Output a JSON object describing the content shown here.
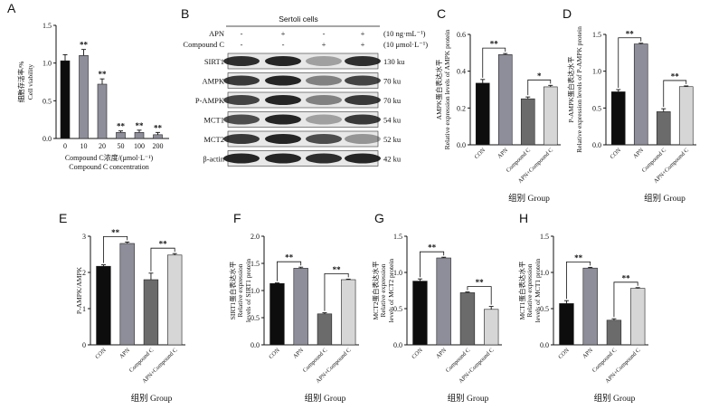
{
  "figure": {
    "western_blot": {
      "letter": "B",
      "title": "Sertoli cells",
      "row_labels": [
        "APN",
        "Compound C"
      ],
      "row_units": [
        "(10 ng·mL⁻¹)",
        "(10 μmol·L⁻¹)"
      ],
      "treatment_signs": [
        [
          "-",
          "+",
          "-",
          "+"
        ],
        [
          "-",
          "-",
          "+",
          "+"
        ]
      ],
      "bands": [
        {
          "protein": "SIRT1",
          "size": "130 ku"
        },
        {
          "protein": "AMPK",
          "size": "70 ku"
        },
        {
          "protein": "P-AMPK",
          "size": "70 ku"
        },
        {
          "protein": "MCT1",
          "size": "54 ku"
        },
        {
          "protein": "MCT2",
          "size": "52 ku"
        },
        {
          "protein": "β-actin",
          "size": "42 ku"
        }
      ]
    }
  },
  "chart_data": [
    {
      "letter": "A",
      "type": "bar",
      "categories": [
        "0",
        "10",
        "20",
        "50",
        "100",
        "200"
      ],
      "values": [
        1.03,
        1.1,
        0.72,
        0.08,
        0.08,
        0.05
      ],
      "errors": [
        0.08,
        0.08,
        0.07,
        0.02,
        0.03,
        0.03
      ],
      "significance": [
        "",
        "**",
        "**",
        "**",
        "**",
        "**"
      ],
      "ylabel_cn": "细胞存活率/%",
      "ylabel_en": "Cell viability",
      "xlabel_cn": "Compound C浓度/(μmol·L⁻¹)",
      "xlabel_en": "Compound C concentration",
      "ylim": [
        0,
        1.5
      ],
      "yticks": [
        "0.0",
        "0.5",
        "1.0",
        "1.5"
      ],
      "colors": [
        "#0d0d0d",
        "#8e8e9a",
        "#8e8e9a",
        "#8e8e9a",
        "#8e8e9a",
        "#8e8e9a"
      ]
    },
    {
      "letter": "C",
      "type": "bar",
      "categories": [
        "CON",
        "APN",
        "Compound C",
        "APN+Compound C"
      ],
      "values": [
        0.335,
        0.49,
        0.25,
        0.315
      ],
      "errors": [
        0.02,
        0.006,
        0.01,
        0.008
      ],
      "ylabel_cn": "AMPK蛋白表达水平",
      "ylabel_en1": "Relative expression levels of AMPK protein",
      "ylabel_en2": "",
      "group_label": "组别 Group",
      "ylim": [
        0,
        0.6
      ],
      "yticks": [
        "0.0",
        "0.2",
        "0.4",
        "0.6"
      ],
      "brackets": [
        {
          "from": 0,
          "to": 1,
          "label": "**"
        },
        {
          "from": 2,
          "to": 3,
          "label": "*"
        }
      ]
    },
    {
      "letter": "D",
      "type": "bar",
      "categories": [
        "CON",
        "APN",
        "Compound C",
        "APN+Compound C"
      ],
      "values": [
        0.72,
        1.37,
        0.45,
        0.79
      ],
      "errors": [
        0.03,
        0.01,
        0.04,
        0.01
      ],
      "ylabel_cn": "P-AMPK蛋白表达水平",
      "ylabel_en1": "Relative expression levels of P-AMPK protein",
      "ylabel_en2": "",
      "group_label": "组别 Group",
      "ylim": [
        0,
        1.5
      ],
      "yticks": [
        "0.0",
        "0.5",
        "1.0",
        "1.5"
      ],
      "brackets": [
        {
          "from": 0,
          "to": 1,
          "label": "**"
        },
        {
          "from": 2,
          "to": 3,
          "label": "**"
        }
      ]
    },
    {
      "letter": "E",
      "type": "bar",
      "categories": [
        "CON",
        "APN",
        "Compound C",
        "APN+Compound C"
      ],
      "values": [
        2.17,
        2.8,
        1.8,
        2.48
      ],
      "errors": [
        0.04,
        0.04,
        0.18,
        0.04
      ],
      "ylabel_cn": "",
      "ylabel_en1": "P-AMPK/AMPK",
      "ylabel_en2": "",
      "group_label": "组别 Group",
      "ylim": [
        0,
        3
      ],
      "yticks": [
        "0",
        "1",
        "2",
        "3"
      ],
      "brackets": [
        {
          "from": 0,
          "to": 1,
          "label": "**"
        },
        {
          "from": 2,
          "to": 3,
          "label": "**"
        }
      ]
    },
    {
      "letter": "F",
      "type": "bar",
      "categories": [
        "CON",
        "APN",
        "Compound C",
        "APN+Compound C"
      ],
      "values": [
        1.13,
        1.41,
        0.57,
        1.2
      ],
      "errors": [
        0.01,
        0.02,
        0.02,
        0.01
      ],
      "ylabel_cn": "SIRT1蛋白表达水平",
      "ylabel_en1": "Relative expression",
      "ylabel_en2": "levels of SIRT1 protein",
      "group_label": "组别 Group",
      "ylim": [
        0,
        2
      ],
      "yticks": [
        "0.0",
        "0.5",
        "1.0",
        "1.5",
        "2.0"
      ],
      "brackets": [
        {
          "from": 0,
          "to": 1,
          "label": "**"
        },
        {
          "from": 2,
          "to": 3,
          "label": "**"
        }
      ]
    },
    {
      "letter": "G",
      "type": "bar",
      "categories": [
        "CON",
        "APN",
        "Compound C",
        "APN+Compound C"
      ],
      "values": [
        0.88,
        1.2,
        0.72,
        0.49
      ],
      "errors": [
        0.03,
        0.01,
        0.01,
        0.04
      ],
      "ylabel_cn": "MCT2蛋白表达水平",
      "ylabel_en1": "Relative expression",
      "ylabel_en2": "levels of MCT2 protein",
      "group_label": "组别 Group",
      "ylim": [
        0,
        1.5
      ],
      "yticks": [
        "0.0",
        "0.5",
        "1.0",
        "1.5"
      ],
      "brackets": [
        {
          "from": 0,
          "to": 1,
          "label": "**"
        },
        {
          "from": 2,
          "to": 3,
          "label": "**"
        }
      ]
    },
    {
      "letter": "H",
      "type": "bar",
      "categories": [
        "CON",
        "APN",
        "Compound C",
        "APN+Compound C"
      ],
      "values": [
        0.57,
        1.06,
        0.34,
        0.78
      ],
      "errors": [
        0.04,
        0.01,
        0.02,
        0.01
      ],
      "ylabel_cn": "MCT1蛋白表达水平",
      "ylabel_en1": "Relative expression",
      "ylabel_en2": "levels of MCT1 protein",
      "group_label": "组别 Group",
      "ylim": [
        0,
        1.5
      ],
      "yticks": [
        "0.0",
        "0.5",
        "1.0",
        "1.5"
      ],
      "brackets": [
        {
          "from": 0,
          "to": 1,
          "label": "**"
        },
        {
          "from": 2,
          "to": 3,
          "label": "**"
        }
      ]
    }
  ],
  "colors": {
    "con": "#0d0d0d",
    "apn": "#8e8e9a",
    "compound_c": "#6b6b6b",
    "apn_compound_c": "#d6d6d6",
    "axis": "#111111",
    "blot_band": "#1a1a1a",
    "blot_background": "#e8e8e8"
  }
}
